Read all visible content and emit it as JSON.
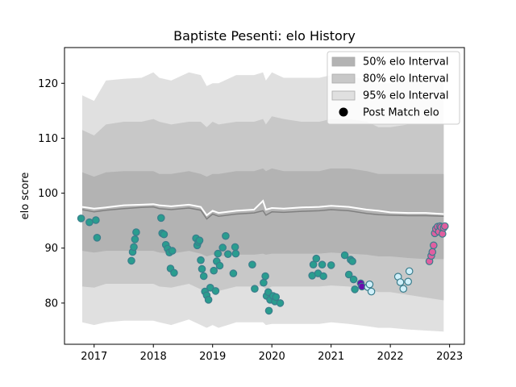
{
  "chart_data": {
    "type": "scatter",
    "title": "Baptiste Pesenti: elo History",
    "xlabel": "",
    "ylabel": "elo score",
    "xlim": [
      2016.5,
      2023.25
    ],
    "ylim": [
      72.5,
      126.5
    ],
    "x_ticks": [
      2017,
      2018,
      2019,
      2020,
      2021,
      2022,
      2023
    ],
    "y_ticks": [
      80,
      90,
      100,
      110,
      120
    ],
    "grid": false,
    "legend_position": "top-right",
    "legend": [
      {
        "label": "50% elo Interval",
        "kind": "band",
        "color": "#b3b3b3"
      },
      {
        "label": "80% elo Interval",
        "kind": "band",
        "color": "#c8c8c8"
      },
      {
        "label": "95% elo Interval",
        "kind": "band",
        "color": "#e0e0e0"
      },
      {
        "label": "Post Match elo",
        "kind": "marker",
        "color": "#000000"
      }
    ],
    "colors": {
      "band95": "#e0e0e0",
      "band80": "#c8c8c8",
      "band50": "#b3b3b3",
      "mean_line": "#808080",
      "mean_highlight": "#ffffff",
      "marker_edge": "#3a7d8c"
    },
    "bands": {
      "x": [
        2016.8,
        2017.0,
        2017.2,
        2017.5,
        2017.8,
        2018.0,
        2018.1,
        2018.3,
        2018.6,
        2018.8,
        2018.9,
        2019.0,
        2019.1,
        2019.4,
        2019.7,
        2019.85,
        2019.9,
        2020.0,
        2020.2,
        2020.5,
        2020.8,
        2021.0,
        2021.3,
        2021.6,
        2021.8,
        2022.0,
        2022.3,
        2022.6,
        2022.9
      ],
      "upper95": [
        117.8,
        116.8,
        120.5,
        120.8,
        121.0,
        122.0,
        121.0,
        120.5,
        122.0,
        121.5,
        119.5,
        120.0,
        120.0,
        121.5,
        121.5,
        122.0,
        120.5,
        122.0,
        121.0,
        121.0,
        121.0,
        121.5,
        121.5,
        120.5,
        120.0,
        120.0,
        120.5,
        120.5,
        120.0
      ],
      "upper80": [
        111.5,
        110.5,
        112.5,
        113.0,
        113.0,
        113.5,
        113.0,
        112.5,
        113.0,
        113.0,
        112.0,
        113.0,
        112.5,
        113.0,
        113.0,
        113.5,
        112.5,
        114.0,
        113.5,
        113.0,
        113.0,
        113.5,
        113.5,
        113.0,
        112.0,
        112.0,
        112.5,
        112.5,
        112.5
      ],
      "upper50": [
        103.8,
        103.0,
        103.8,
        104.0,
        104.0,
        104.0,
        103.5,
        103.5,
        104.0,
        103.5,
        103.0,
        103.5,
        103.5,
        104.0,
        104.0,
        104.5,
        104.0,
        104.5,
        104.0,
        104.0,
        104.0,
        104.5,
        104.5,
        104.0,
        103.5,
        103.5,
        103.5,
        103.5,
        103.5
      ],
      "mean": [
        97.0,
        96.6,
        96.9,
        97.2,
        97.4,
        97.5,
        97.2,
        97.0,
        97.3,
        96.9,
        95.3,
        96.2,
        95.8,
        96.2,
        96.4,
        96.8,
        96.0,
        96.6,
        96.5,
        96.7,
        96.8,
        97.0,
        96.8,
        96.3,
        96.1,
        96.0,
        95.9,
        95.9,
        95.8
      ],
      "lower50": [
        89.5,
        89.2,
        89.5,
        89.5,
        89.5,
        89.5,
        89.2,
        89.0,
        89.5,
        89.0,
        88.5,
        88.8,
        88.5,
        88.8,
        88.8,
        89.0,
        88.8,
        89.0,
        89.0,
        89.0,
        89.0,
        89.2,
        89.0,
        88.8,
        88.5,
        88.5,
        88.2,
        88.0,
        88.0
      ],
      "lower80": [
        83.0,
        82.8,
        83.5,
        83.5,
        83.5,
        83.5,
        83.0,
        82.8,
        83.5,
        82.5,
        82.0,
        82.8,
        82.2,
        83.0,
        83.0,
        83.0,
        82.5,
        83.0,
        83.0,
        83.0,
        83.0,
        83.2,
        83.0,
        82.5,
        82.0,
        82.0,
        81.5,
        81.0,
        80.5
      ],
      "lower95": [
        76.5,
        76.0,
        76.5,
        76.8,
        76.8,
        76.8,
        76.5,
        76.0,
        77.0,
        76.0,
        75.5,
        76.0,
        75.5,
        76.5,
        76.5,
        76.5,
        76.0,
        76.2,
        76.2,
        76.2,
        76.2,
        76.5,
        76.2,
        75.8,
        75.5,
        75.5,
        75.2,
        75.0,
        74.8
      ],
      "highlight": [
        97.5,
        97.2,
        97.4,
        97.8,
        97.9,
        98.0,
        97.8,
        97.6,
        97.9,
        97.5,
        96.0,
        96.8,
        96.4,
        96.8,
        97.0,
        98.6,
        97.0,
        97.3,
        97.2,
        97.4,
        97.5,
        97.7,
        97.5,
        97.0,
        96.8,
        96.5,
        96.4,
        96.4,
        96.2
      ]
    },
    "series": [
      {
        "color": "#2a9d8f",
        "points": [
          [
            2016.78,
            95.4
          ],
          [
            2016.92,
            94.7
          ],
          [
            2017.03,
            95.1
          ],
          [
            2017.05,
            91.9
          ],
          [
            2017.63,
            87.7
          ],
          [
            2017.65,
            89.3
          ],
          [
            2017.67,
            90.2
          ],
          [
            2017.69,
            91.6
          ],
          [
            2017.71,
            92.9
          ],
          [
            2018.13,
            95.5
          ],
          [
            2018.15,
            92.7
          ],
          [
            2018.18,
            92.5
          ],
          [
            2018.21,
            90.6
          ],
          [
            2018.24,
            89.9
          ],
          [
            2018.27,
            89.2
          ],
          [
            2018.29,
            86.3
          ],
          [
            2018.32,
            89.5
          ],
          [
            2018.35,
            85.5
          ],
          [
            2018.72,
            91.8
          ],
          [
            2018.74,
            90.5
          ],
          [
            2018.76,
            91.1
          ],
          [
            2018.78,
            91.4
          ],
          [
            2018.8,
            87.8
          ],
          [
            2018.82,
            86.2
          ],
          [
            2018.85,
            84.9
          ],
          [
            2018.87,
            82.1
          ],
          [
            2018.9,
            81.4
          ],
          [
            2018.93,
            80.6
          ],
          [
            2018.96,
            82.8
          ],
          [
            2019.02,
            85.9
          ],
          [
            2019.05,
            82.2
          ],
          [
            2019.07,
            87.6
          ],
          [
            2019.09,
            89.0
          ],
          [
            2019.12,
            86.8
          ],
          [
            2019.17,
            90.1
          ],
          [
            2019.22,
            92.2
          ],
          [
            2019.26,
            88.9
          ],
          [
            2019.35,
            85.4
          ],
          [
            2019.38,
            90.2
          ],
          [
            2019.39,
            89.0
          ],
          [
            2019.67,
            87.0
          ],
          [
            2019.71,
            82.6
          ],
          [
            2019.86,
            83.7
          ],
          [
            2019.89,
            84.9
          ],
          [
            2019.91,
            81.3
          ],
          [
            2019.94,
            82.0
          ],
          [
            2019.95,
            78.6
          ],
          [
            2019.97,
            80.6
          ],
          [
            2020.02,
            81.3
          ],
          [
            2020.05,
            80.3
          ],
          [
            2020.07,
            81.1
          ],
          [
            2020.14,
            80.0
          ],
          [
            2020.68,
            85.0
          ],
          [
            2020.7,
            87.0
          ],
          [
            2020.75,
            88.1
          ],
          [
            2020.78,
            85.4
          ],
          [
            2020.85,
            87.0
          ],
          [
            2020.87,
            84.9
          ],
          [
            2021.0,
            86.9
          ],
          [
            2021.23,
            88.7
          ],
          [
            2021.3,
            85.2
          ],
          [
            2021.33,
            87.9
          ],
          [
            2021.36,
            87.6
          ],
          [
            2021.38,
            84.3
          ],
          [
            2021.4,
            82.5
          ]
        ]
      },
      {
        "color": "#6a0dad",
        "points": [
          [
            2021.5,
            83.6
          ],
          [
            2021.52,
            83.0
          ]
        ]
      },
      {
        "color": "#d0f0fa",
        "points": [
          [
            2021.62,
            82.9
          ],
          [
            2021.65,
            83.4
          ],
          [
            2021.68,
            82.1
          ],
          [
            2022.13,
            84.8
          ],
          [
            2022.17,
            83.8
          ],
          [
            2022.22,
            82.6
          ],
          [
            2022.3,
            83.9
          ],
          [
            2022.32,
            85.8
          ]
        ]
      },
      {
        "color": "#e05fa0",
        "points": [
          [
            2022.66,
            87.6
          ],
          [
            2022.69,
            88.6
          ],
          [
            2022.71,
            89.3
          ],
          [
            2022.73,
            90.5
          ],
          [
            2022.75,
            92.7
          ],
          [
            2022.77,
            93.5
          ],
          [
            2022.8,
            93.9
          ],
          [
            2022.82,
            93.0
          ],
          [
            2022.84,
            94.0
          ],
          [
            2022.86,
            93.8
          ],
          [
            2022.88,
            92.6
          ],
          [
            2022.9,
            93.7
          ],
          [
            2022.92,
            94.0
          ]
        ]
      }
    ]
  }
}
